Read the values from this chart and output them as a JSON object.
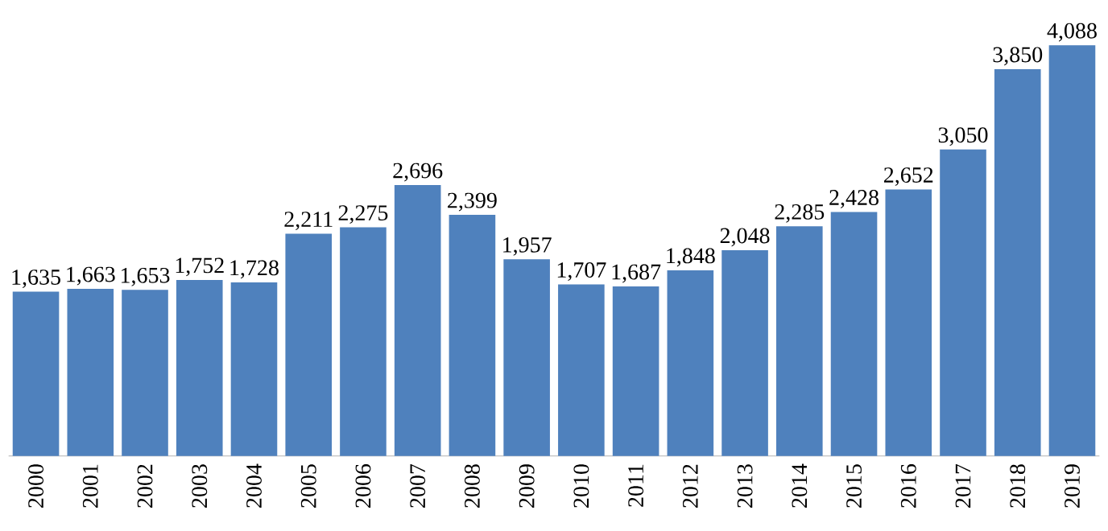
{
  "chart_data": {
    "type": "bar",
    "categories": [
      "2000",
      "2001",
      "2002",
      "2003",
      "2004",
      "2005",
      "2006",
      "2007",
      "2008",
      "2009",
      "2010",
      "2011",
      "2012",
      "2013",
      "2014",
      "2015",
      "2016",
      "2017",
      "2018",
      "2019"
    ],
    "values": [
      1635,
      1663,
      1653,
      1752,
      1728,
      2211,
      2275,
      2696,
      2399,
      1957,
      1707,
      1687,
      1848,
      2048,
      2285,
      2428,
      2652,
      3050,
      3850,
      4088
    ],
    "value_labels": [
      "1,635",
      "1,663",
      "1,653",
      "1,752",
      "1,728",
      "2,211",
      "2,275",
      "2,696",
      "2,399",
      "1,957",
      "1,707",
      "1,687",
      "1,848",
      "2,048",
      "2,285",
      "2,428",
      "2,652",
      "3,050",
      "3,850",
      "4,088"
    ],
    "color": "#4f81bd"
  }
}
